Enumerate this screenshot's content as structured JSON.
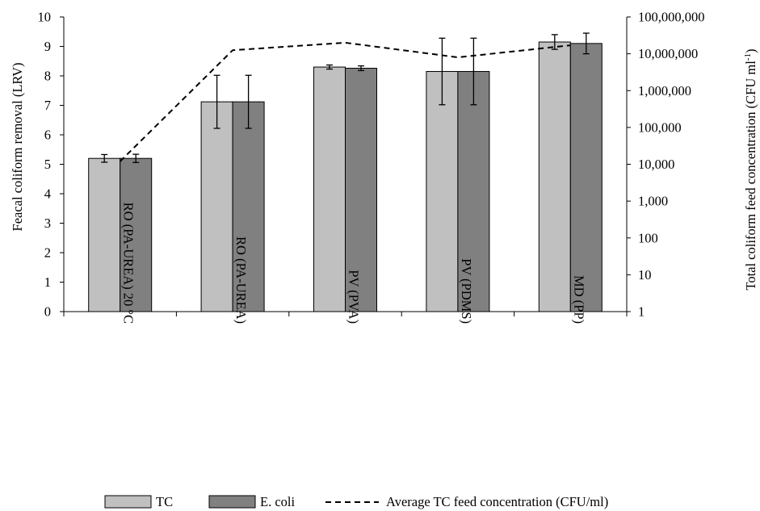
{
  "chart_data": {
    "type": "bar",
    "categories": [
      "RO (PA-UREA) 20 °C",
      "RO (PA-UREA)",
      "PV (PVA)",
      "PV (PDMS)",
      "MD (PP)"
    ],
    "series": [
      {
        "name": "TC",
        "color": "#c0c0c0",
        "values": [
          5.2,
          7.12,
          8.3,
          8.15,
          9.15
        ],
        "error": [
          0.13,
          0.9,
          0.07,
          1.13,
          0.25
        ]
      },
      {
        "name": "E. coli",
        "color": "#808080",
        "values": [
          5.2,
          7.12,
          8.26,
          8.15,
          9.1
        ],
        "error": [
          0.14,
          0.9,
          0.08,
          1.13,
          0.35
        ]
      }
    ],
    "line_series": {
      "name": "Average TC feed concentration (CFU/ml)",
      "axis": "right",
      "style": "dashed",
      "values": [
        12000,
        12500000,
        20000000,
        8000000,
        17000000
      ]
    },
    "left_axis": {
      "label": "Feacal coliform removal (LRV)",
      "ylim": [
        0,
        10
      ],
      "ticks": [
        "0",
        "1",
        "2",
        "3",
        "4",
        "5",
        "6",
        "7",
        "8",
        "9",
        "10"
      ]
    },
    "right_axis": {
      "label_main": "Total coliform feed concentration (CFU ml",
      "label_sup": "-1",
      "label_end": ")",
      "scale": "log",
      "ylim": [
        1,
        100000000
      ],
      "ticks": [
        "1",
        "10",
        "100",
        "1,000",
        "10,000",
        "100,000",
        "1,000,000",
        "10,000,000",
        "100,000,000"
      ]
    },
    "legend_position": "bottom",
    "grid": false
  }
}
